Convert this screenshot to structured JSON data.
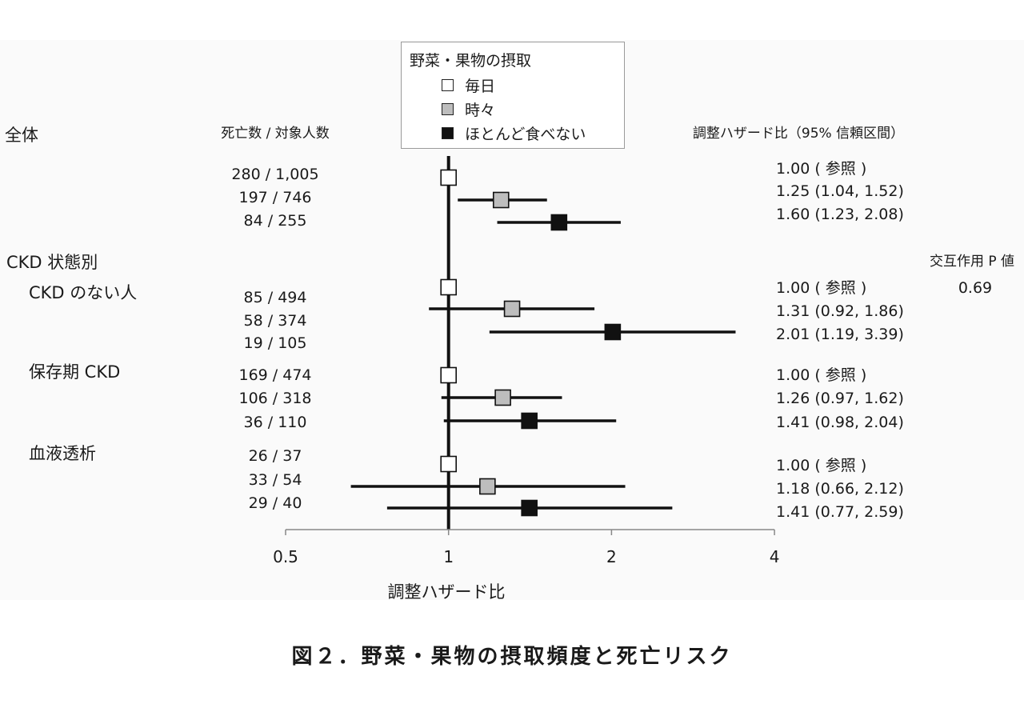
{
  "chart_data": {
    "type": "forest",
    "xlabel": "調整ハザード比",
    "xscale": "log",
    "xlim": [
      0.5,
      4
    ],
    "xticks": [
      "0.5",
      "1",
      "2",
      "4"
    ],
    "reference_line": 1,
    "legend": {
      "title": "野菜・果物の摂取",
      "items": [
        {
          "label": "毎日",
          "color": "#ffffff"
        },
        {
          "label": "時々",
          "color": "#bdbdbd"
        },
        {
          "label": "ほとんど食べない",
          "color": "#111111"
        }
      ]
    },
    "column_headers": {
      "counts": "死亡数 / 対象人数",
      "hr": "調整ハザード比（95% 信頼区間）",
      "interaction": "交互作用 P 値"
    },
    "interaction_p": "0.69",
    "group_header": "CKD 状態別",
    "groups": [
      {
        "label": "全体",
        "rows": [
          {
            "count": "280 / 1,005",
            "hr_text": "1.00 ( 参照 )",
            "hr": 1.0,
            "lo": null,
            "hi": null
          },
          {
            "count": "197 / 746",
            "hr_text": "1.25 (1.04, 1.52)",
            "hr": 1.25,
            "lo": 1.04,
            "hi": 1.52
          },
          {
            "count": "84 / 255",
            "hr_text": "1.60 (1.23, 2.08)",
            "hr": 1.6,
            "lo": 1.23,
            "hi": 2.08
          }
        ]
      },
      {
        "label": "CKD のない人",
        "rows": [
          {
            "count": "85 / 494",
            "hr_text": "1.00 ( 参照 )",
            "hr": 1.0,
            "lo": null,
            "hi": null
          },
          {
            "count": "58 / 374",
            "hr_text": "1.31 (0.92, 1.86)",
            "hr": 1.31,
            "lo": 0.92,
            "hi": 1.86
          },
          {
            "count": "19 / 105",
            "hr_text": "2.01 (1.19, 3.39)",
            "hr": 2.01,
            "lo": 1.19,
            "hi": 3.39
          }
        ]
      },
      {
        "label": "保存期 CKD",
        "rows": [
          {
            "count": "169 / 474",
            "hr_text": "1.00 ( 参照 )",
            "hr": 1.0,
            "lo": null,
            "hi": null
          },
          {
            "count": "106 / 318",
            "hr_text": "1.26 (0.97, 1.62)",
            "hr": 1.26,
            "lo": 0.97,
            "hi": 1.62
          },
          {
            "count": "36 / 110",
            "hr_text": "1.41 (0.98, 2.04)",
            "hr": 1.41,
            "lo": 0.98,
            "hi": 2.04
          }
        ]
      },
      {
        "label": "血液透析",
        "rows": [
          {
            "count": "26 / 37",
            "hr_text": "1.00 ( 参照 )",
            "hr": 1.0,
            "lo": null,
            "hi": null
          },
          {
            "count": "33 / 54",
            "hr_text": "1.18 (0.66, 2.12)",
            "hr": 1.18,
            "lo": 0.66,
            "hi": 2.12
          },
          {
            "count": "29 / 40",
            "hr_text": "1.41 (0.77, 2.59)",
            "hr": 1.41,
            "lo": 0.77,
            "hi": 2.59
          }
        ]
      }
    ]
  },
  "caption": "図２．野菜・果物の摂取頻度と死亡リスク"
}
